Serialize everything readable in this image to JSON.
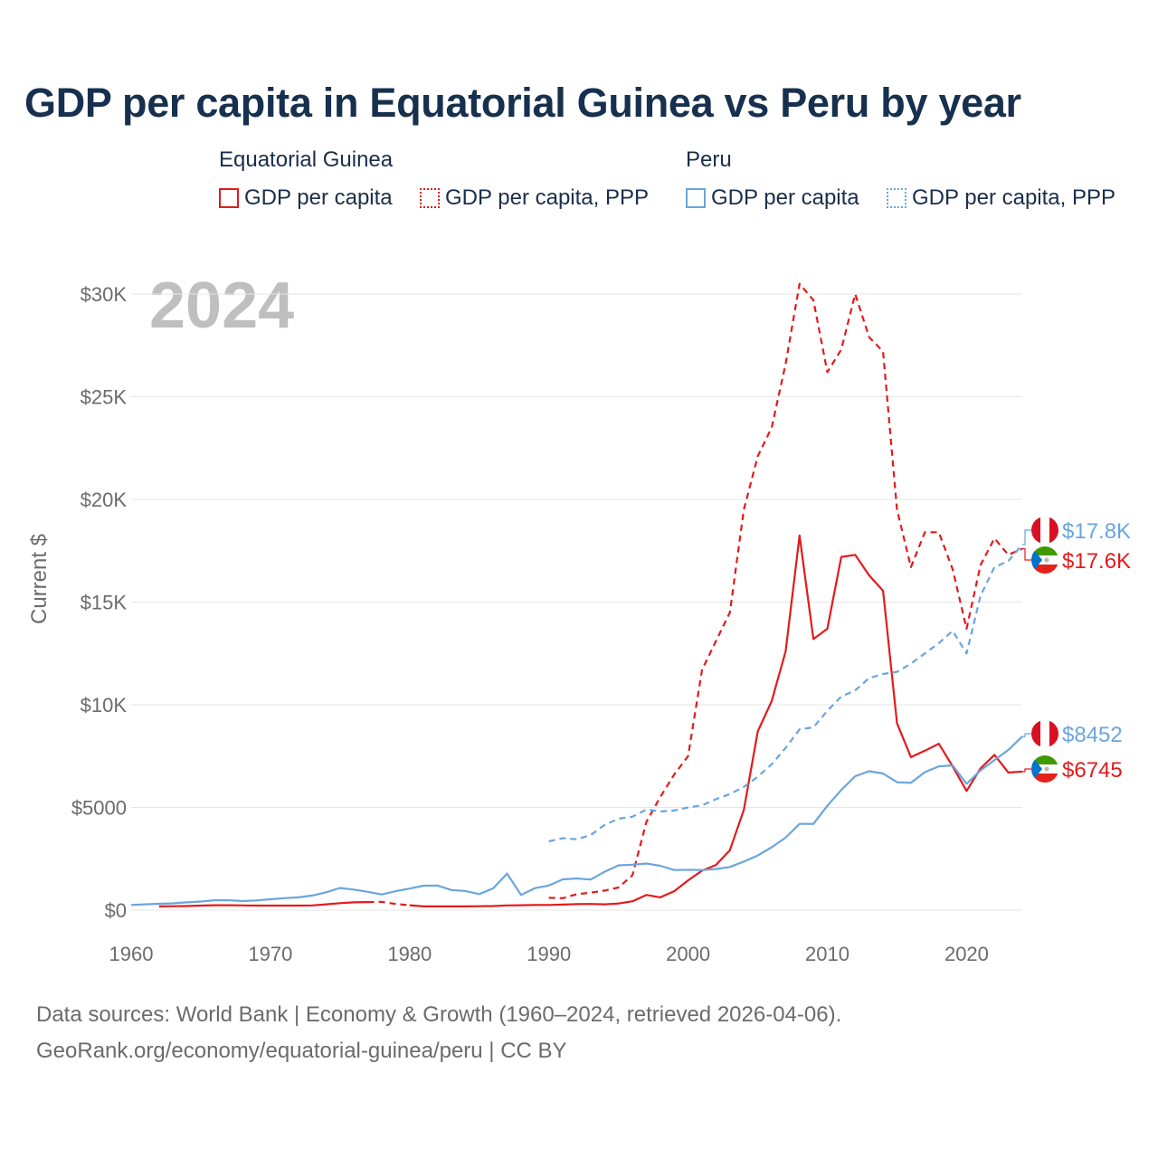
{
  "title": "GDP per capita in Equatorial Guinea vs Peru by year",
  "legend": {
    "groups": [
      {
        "name": "Equatorial Guinea",
        "items": [
          "GDP per capita",
          "GDP per capita, PPP"
        ]
      },
      {
        "name": "Peru",
        "items": [
          "GDP per capita",
          "GDP per capita, PPP"
        ]
      }
    ]
  },
  "year_label": "2024",
  "end_labels": {
    "pe_ppp": "$17.8K",
    "eg_ppp": "$17.6K",
    "pe_gdp": "$8452",
    "eg_gdp": "$6745"
  },
  "footer": {
    "line1": "Data sources: World Bank | Economy & Growth (1960–2024, retrieved 2026-04-06).",
    "line2": "GeoRank.org/economy/equatorial-guinea/peru | CC BY"
  },
  "colors": {
    "equatorial_guinea": "#e31a1c",
    "peru": "#6aa5de",
    "grid": "#e6e6e6",
    "axis_text": "#6b6b6b",
    "year_watermark": "#bfbfbf"
  },
  "chart_data": {
    "type": "line",
    "title": "GDP per capita in Equatorial Guinea vs Peru by year",
    "xlabel": "",
    "ylabel": "Current $",
    "xlim": [
      1960,
      2024
    ],
    "ylim": [
      0,
      30000
    ],
    "x_ticks": [
      1960,
      1970,
      1980,
      1990,
      2000,
      2010,
      2020
    ],
    "x_tick_labels": [
      "1960",
      "1970",
      "1980",
      "1990",
      "2000",
      "2010",
      "2020"
    ],
    "y_ticks": [
      0,
      5000,
      10000,
      15000,
      20000,
      25000,
      30000
    ],
    "y_tick_labels": [
      "$0",
      "$5000",
      "$10K",
      "$15K",
      "$20K",
      "$25K",
      "$30K"
    ],
    "grid": true,
    "legend_position": "top",
    "series": [
      {
        "name": "Equatorial Guinea — GDP per capita",
        "country": "Equatorial Guinea",
        "metric": "GDP per capita",
        "style": "solid",
        "color": "#e31a1c",
        "x": [
          1962,
          1963,
          1964,
          1965,
          1966,
          1967,
          1968,
          1969,
          1970,
          1971,
          1972,
          1973,
          1974,
          1975,
          1976,
          1977,
          1978,
          1979,
          1980,
          1981,
          1982,
          1983,
          1984,
          1985,
          1986,
          1987,
          1988,
          1989,
          1990,
          1991,
          1992,
          1993,
          1994,
          1995,
          1996,
          1997,
          1998,
          1999,
          2000,
          2001,
          2002,
          2003,
          2004,
          2005,
          2006,
          2007,
          2008,
          2009,
          2010,
          2011,
          2012,
          2013,
          2014,
          2015,
          2016,
          2017,
          2018,
          2019,
          2020,
          2021,
          2022,
          2023,
          2024
        ],
        "values": [
          180,
          190,
          200,
          220,
          240,
          240,
          230,
          220,
          220,
          220,
          220,
          230,
          280,
          340,
          380,
          390,
          400,
          300,
          240,
          180,
          180,
          180,
          180,
          190,
          200,
          230,
          240,
          250,
          250,
          270,
          290,
          300,
          280,
          320,
          430,
          740,
          620,
          920,
          1450,
          1920,
          2200,
          2920,
          4880,
          8700,
          10180,
          12600,
          18240,
          13200,
          13700,
          17200,
          17300,
          16300,
          15550,
          9100,
          7450,
          7760,
          8100,
          7000,
          5800,
          6900,
          7560,
          6700,
          6745
        ],
        "gap_years": [
          1978,
          1979
        ]
      },
      {
        "name": "Equatorial Guinea — GDP per capita, PPP",
        "country": "Equatorial Guinea",
        "metric": "GDP per capita, PPP",
        "style": "dashed",
        "color": "#e31a1c",
        "x": [
          1990,
          1991,
          1992,
          1993,
          1994,
          1995,
          1996,
          1997,
          1998,
          1999,
          2000,
          2001,
          2002,
          2003,
          2004,
          2005,
          2006,
          2007,
          2008,
          2009,
          2010,
          2011,
          2012,
          2013,
          2014,
          2015,
          2016,
          2017,
          2018,
          2019,
          2020,
          2021,
          2022,
          2023,
          2024
        ],
        "values": [
          600,
          580,
          770,
          850,
          950,
          1100,
          1700,
          4300,
          5500,
          6600,
          7500,
          11700,
          13100,
          14500,
          19500,
          22100,
          23500,
          26600,
          30500,
          29700,
          26200,
          27300,
          30000,
          27900,
          27200,
          19500,
          16700,
          18400,
          18400,
          16600,
          13700,
          16800,
          18100,
          17300,
          17600
        ]
      },
      {
        "name": "Peru — GDP per capita",
        "country": "Peru",
        "metric": "GDP per capita",
        "style": "solid",
        "color": "#6aa5de",
        "x": [
          1960,
          1961,
          1962,
          1963,
          1964,
          1965,
          1966,
          1967,
          1968,
          1969,
          1970,
          1971,
          1972,
          1973,
          1974,
          1975,
          1976,
          1977,
          1978,
          1979,
          1980,
          1981,
          1982,
          1983,
          1984,
          1985,
          1986,
          1987,
          1988,
          1989,
          1990,
          1991,
          1992,
          1993,
          1994,
          1995,
          1996,
          1997,
          1998,
          1999,
          2000,
          2001,
          2002,
          2003,
          2004,
          2005,
          2006,
          2007,
          2008,
          2009,
          2010,
          2011,
          2012,
          2013,
          2014,
          2015,
          2016,
          2017,
          2018,
          2019,
          2020,
          2021,
          2022,
          2023,
          2024
        ],
        "values": [
          250,
          280,
          310,
          330,
          380,
          420,
          480,
          480,
          440,
          470,
          530,
          580,
          620,
          710,
          870,
          1080,
          1000,
          890,
          760,
          920,
          1050,
          1190,
          1200,
          980,
          930,
          780,
          1060,
          1780,
          740,
          1070,
          1200,
          1500,
          1540,
          1490,
          1870,
          2180,
          2210,
          2270,
          2160,
          1950,
          1960,
          1950,
          2000,
          2100,
          2360,
          2660,
          3060,
          3530,
          4200,
          4200,
          5080,
          5850,
          6520,
          6760,
          6650,
          6230,
          6200,
          6720,
          7000,
          7050,
          6150,
          6800,
          7300,
          7800,
          8452
        ]
      },
      {
        "name": "Peru — GDP per capita, PPP",
        "country": "Peru",
        "metric": "GDP per capita, PPP",
        "style": "dashed",
        "color": "#6aa5de",
        "x": [
          1990,
          1991,
          1992,
          1993,
          1994,
          1995,
          1996,
          1997,
          1998,
          1999,
          2000,
          2001,
          2002,
          2003,
          2004,
          2005,
          2006,
          2007,
          2008,
          2009,
          2010,
          2011,
          2012,
          2013,
          2014,
          2015,
          2016,
          2017,
          2018,
          2019,
          2020,
          2021,
          2022,
          2023,
          2024
        ],
        "values": [
          3350,
          3500,
          3450,
          3650,
          4150,
          4450,
          4550,
          4900,
          4800,
          4850,
          5000,
          5100,
          5400,
          5650,
          6000,
          6500,
          7100,
          7900,
          8800,
          8900,
          9700,
          10400,
          10700,
          11300,
          11500,
          11600,
          12000,
          12500,
          13000,
          13600,
          12500,
          15300,
          16700,
          17000,
          17800
        ]
      }
    ]
  }
}
